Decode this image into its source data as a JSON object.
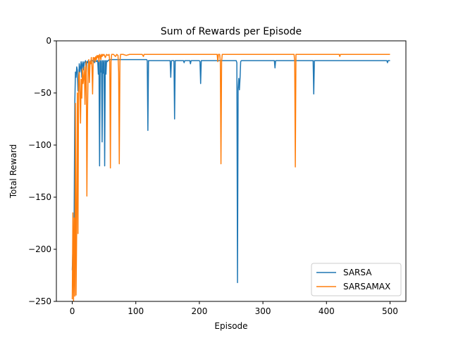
{
  "chart_data": {
    "type": "line",
    "title": "Sum of Rewards per Episode",
    "xlabel": "Episode",
    "ylabel": "Total Reward",
    "xlim": [
      -25,
      525
    ],
    "ylim": [
      -250,
      0
    ],
    "xticks": [
      0,
      100,
      200,
      300,
      400,
      500
    ],
    "yticks": [
      0,
      -50,
      -100,
      -150,
      -200,
      -250
    ],
    "xtick_labels": [
      "0",
      "100",
      "200",
      "300",
      "400",
      "500"
    ],
    "ytick_labels": [
      "0",
      "−50",
      "−100",
      "−150",
      "−200",
      "−250"
    ],
    "legend_position": "bottom-right",
    "grid": false,
    "series": [
      {
        "name": "SARSA",
        "color": "#1f77b4",
        "baseline": -19,
        "points": [
          [
            0,
            -220
          ],
          [
            1,
            -200
          ],
          [
            2,
            -230
          ],
          [
            3,
            -165
          ],
          [
            4,
            -60
          ],
          [
            5,
            -30
          ],
          [
            6,
            -35
          ],
          [
            7,
            -25
          ],
          [
            8,
            -28
          ],
          [
            9,
            -48
          ],
          [
            10,
            -40
          ],
          [
            11,
            -22
          ],
          [
            12,
            -30
          ],
          [
            13,
            -25
          ],
          [
            14,
            -20
          ],
          [
            15,
            -35
          ],
          [
            16,
            -22
          ],
          [
            17,
            -20
          ],
          [
            18,
            -28
          ],
          [
            19,
            -21
          ],
          [
            20,
            -20
          ],
          [
            21,
            -19
          ],
          [
            22,
            -30
          ],
          [
            23,
            -20
          ],
          [
            24,
            -21
          ],
          [
            25,
            -19
          ],
          [
            26,
            -20
          ],
          [
            27,
            -25
          ],
          [
            28,
            -20
          ],
          [
            29,
            -19
          ],
          [
            30,
            -20
          ],
          [
            31,
            -19
          ],
          [
            32,
            -19
          ],
          [
            33,
            -20
          ],
          [
            34,
            -19
          ],
          [
            35,
            -21
          ],
          [
            36,
            -19
          ],
          [
            37,
            -19
          ],
          [
            38,
            -20
          ],
          [
            39,
            -19
          ],
          [
            40,
            -19
          ],
          [
            41,
            -32
          ],
          [
            42,
            -19
          ],
          [
            43,
            -120
          ],
          [
            44,
            -19
          ],
          [
            45,
            -30
          ],
          [
            46,
            -19
          ],
          [
            47,
            -97
          ],
          [
            48,
            -19
          ],
          [
            49,
            -31
          ],
          [
            50,
            -19
          ],
          [
            51,
            -120
          ],
          [
            52,
            -19
          ],
          [
            53,
            -32
          ],
          [
            54,
            -19
          ],
          [
            55,
            -20
          ],
          [
            56,
            -19
          ],
          [
            57,
            -19
          ],
          [
            58,
            -18
          ],
          [
            59,
            -18
          ],
          [
            60,
            -18
          ],
          [
            65,
            -18
          ],
          [
            70,
            -18
          ],
          [
            75,
            -18
          ],
          [
            80,
            -18
          ],
          [
            90,
            -18
          ],
          [
            100,
            -18
          ],
          [
            110,
            -18
          ],
          [
            117,
            -18
          ],
          [
            118,
            -19
          ],
          [
            119,
            -86
          ],
          [
            120,
            -19
          ],
          [
            125,
            -19
          ],
          [
            130,
            -19
          ],
          [
            140,
            -19
          ],
          [
            150,
            -19
          ],
          [
            154,
            -19
          ],
          [
            155,
            -35
          ],
          [
            156,
            -19
          ],
          [
            160,
            -19
          ],
          [
            161,
            -75
          ],
          [
            162,
            -19
          ],
          [
            170,
            -19
          ],
          [
            175,
            -19
          ],
          [
            176,
            -21
          ],
          [
            177,
            -19
          ],
          [
            185,
            -19
          ],
          [
            186,
            -22
          ],
          [
            187,
            -19
          ],
          [
            190,
            -19
          ],
          [
            200,
            -19
          ],
          [
            201,
            -20
          ],
          [
            202,
            -41
          ],
          [
            203,
            -19
          ],
          [
            210,
            -19
          ],
          [
            220,
            -19
          ],
          [
            230,
            -19
          ],
          [
            240,
            -19
          ],
          [
            250,
            -19
          ],
          [
            258,
            -19
          ],
          [
            259,
            -21
          ],
          [
            260,
            -232
          ],
          [
            261,
            -46
          ],
          [
            262,
            -36
          ],
          [
            263,
            -47
          ],
          [
            264,
            -36
          ],
          [
            265,
            -20
          ],
          [
            266,
            -19
          ],
          [
            270,
            -19
          ],
          [
            280,
            -19
          ],
          [
            290,
            -19
          ],
          [
            300,
            -19
          ],
          [
            310,
            -19
          ],
          [
            318,
            -19
          ],
          [
            319,
            -26
          ],
          [
            320,
            -19
          ],
          [
            330,
            -19
          ],
          [
            340,
            -19
          ],
          [
            350,
            -19
          ],
          [
            360,
            -19
          ],
          [
            370,
            -19
          ],
          [
            379,
            -19
          ],
          [
            380,
            -51
          ],
          [
            381,
            -19
          ],
          [
            390,
            -19
          ],
          [
            400,
            -19
          ],
          [
            420,
            -19
          ],
          [
            440,
            -19
          ],
          [
            460,
            -19
          ],
          [
            480,
            -19
          ],
          [
            495,
            -19
          ],
          [
            496,
            -21
          ],
          [
            497,
            -19
          ],
          [
            500,
            -19
          ]
        ]
      },
      {
        "name": "SARSAMAX",
        "color": "#ff7f0e",
        "baseline": -13,
        "points": [
          [
            0,
            -248
          ],
          [
            1,
            -165
          ],
          [
            2,
            -250
          ],
          [
            3,
            -170
          ],
          [
            4,
            -245
          ],
          [
            5,
            -60
          ],
          [
            6,
            -244
          ],
          [
            7,
            -180
          ],
          [
            8,
            -50
          ],
          [
            9,
            -185
          ],
          [
            10,
            -35
          ],
          [
            11,
            -30
          ],
          [
            12,
            -50
          ],
          [
            13,
            -79
          ],
          [
            14,
            -37
          ],
          [
            15,
            -55
          ],
          [
            16,
            -27
          ],
          [
            17,
            -41
          ],
          [
            18,
            -35
          ],
          [
            19,
            -25
          ],
          [
            20,
            -61
          ],
          [
            21,
            -30
          ],
          [
            22,
            -20
          ],
          [
            23,
            -149
          ],
          [
            24,
            -70
          ],
          [
            25,
            -27
          ],
          [
            26,
            -18
          ],
          [
            27,
            -40
          ],
          [
            28,
            -20
          ],
          [
            29,
            -22
          ],
          [
            30,
            -16
          ],
          [
            31,
            -25
          ],
          [
            32,
            -51
          ],
          [
            33,
            -16
          ],
          [
            34,
            -18
          ],
          [
            35,
            -16
          ],
          [
            36,
            -20
          ],
          [
            37,
            -15
          ],
          [
            38,
            -18
          ],
          [
            39,
            -14
          ],
          [
            40,
            -16
          ],
          [
            41,
            -14
          ],
          [
            42,
            -20
          ],
          [
            43,
            -13
          ],
          [
            44,
            -14
          ],
          [
            45,
            -18
          ],
          [
            46,
            -13
          ],
          [
            47,
            -15
          ],
          [
            48,
            -13
          ],
          [
            49,
            -14
          ],
          [
            50,
            -13
          ],
          [
            52,
            -16
          ],
          [
            54,
            -13
          ],
          [
            56,
            -14
          ],
          [
            58,
            -13
          ],
          [
            59,
            -20
          ],
          [
            60,
            -122
          ],
          [
            61,
            -20
          ],
          [
            62,
            -13
          ],
          [
            65,
            -13
          ],
          [
            68,
            -15
          ],
          [
            70,
            -13
          ],
          [
            72,
            -14
          ],
          [
            73,
            -30
          ],
          [
            74,
            -118
          ],
          [
            75,
            -20
          ],
          [
            76,
            -13
          ],
          [
            80,
            -13
          ],
          [
            85,
            -14
          ],
          [
            90,
            -13
          ],
          [
            100,
            -13
          ],
          [
            110,
            -13
          ],
          [
            112,
            -15
          ],
          [
            113,
            -13
          ],
          [
            130,
            -13
          ],
          [
            150,
            -13
          ],
          [
            170,
            -13
          ],
          [
            190,
            -13
          ],
          [
            210,
            -13
          ],
          [
            228,
            -13
          ],
          [
            229,
            -20
          ],
          [
            230,
            -13
          ],
          [
            232,
            -13
          ],
          [
            233,
            -20
          ],
          [
            234,
            -118
          ],
          [
            235,
            -20
          ],
          [
            236,
            -13
          ],
          [
            250,
            -13
          ],
          [
            270,
            -13
          ],
          [
            290,
            -13
          ],
          [
            310,
            -13
          ],
          [
            330,
            -13
          ],
          [
            349,
            -13
          ],
          [
            350,
            -19
          ],
          [
            351,
            -121
          ],
          [
            352,
            -13
          ],
          [
            370,
            -13
          ],
          [
            390,
            -13
          ],
          [
            410,
            -13
          ],
          [
            420,
            -13
          ],
          [
            421,
            -15
          ],
          [
            422,
            -13
          ],
          [
            440,
            -13
          ],
          [
            460,
            -13
          ],
          [
            480,
            -13
          ],
          [
            500,
            -13
          ]
        ]
      }
    ]
  }
}
